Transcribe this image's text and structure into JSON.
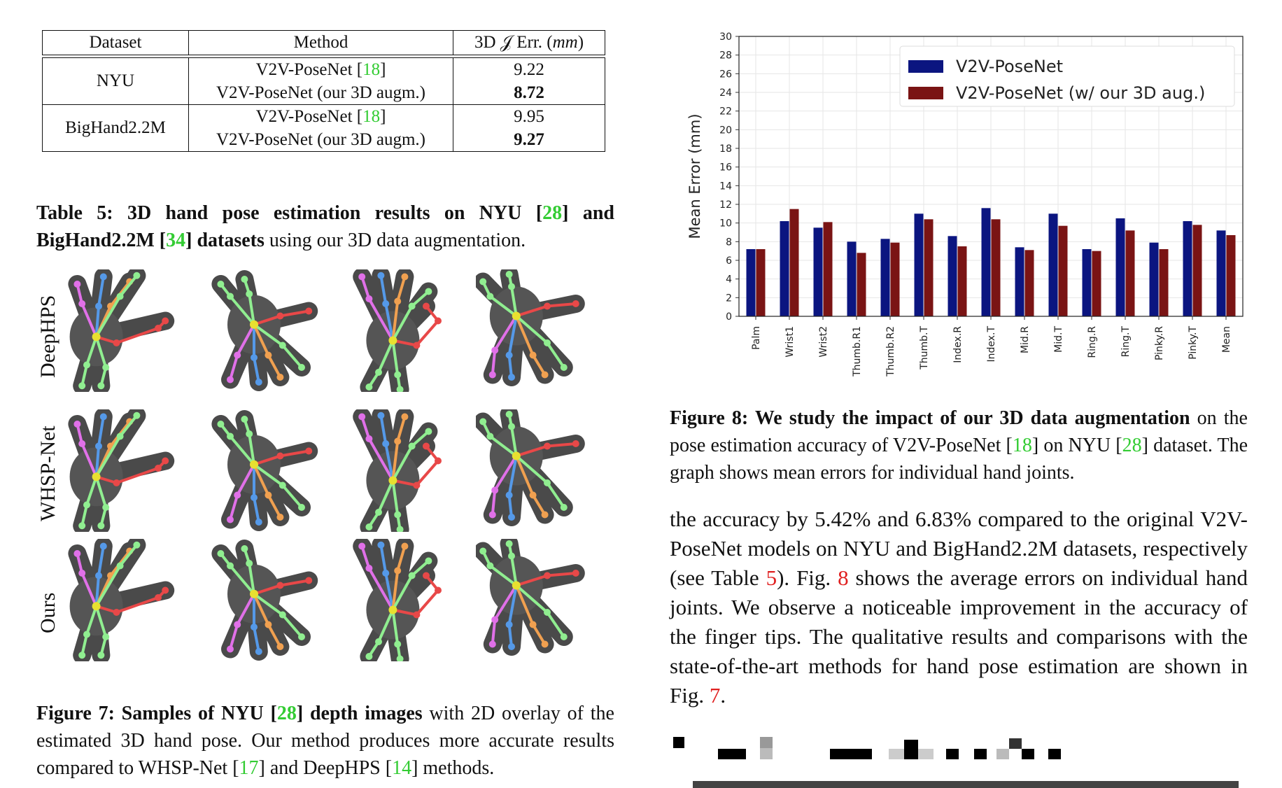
{
  "table5": {
    "headers": [
      "Dataset",
      "Method",
      "3D 𝒥 Err. (mm)"
    ],
    "header_err_prefix": "3D 𝒥 Err. (",
    "header_err_unit": "mm",
    "header_err_suffix": ")",
    "groups": [
      {
        "dataset": "NYU",
        "rows": [
          {
            "method_text": "V2V-PoseNet [",
            "cite": "18",
            "method_tail": "]",
            "err": "9.22",
            "bold": false
          },
          {
            "method_text": "V2V-PoseNet (our 3D augm.)",
            "cite": "",
            "method_tail": "",
            "err": "8.72",
            "bold": true
          }
        ]
      },
      {
        "dataset": "BigHand2.2M",
        "rows": [
          {
            "method_text": "V2V-PoseNet [",
            "cite": "18",
            "method_tail": "]",
            "err": "9.95",
            "bold": false
          },
          {
            "method_text": "V2V-PoseNet (our 3D augm.)",
            "cite": "",
            "method_tail": "",
            "err": "9.27",
            "bold": true
          }
        ]
      }
    ],
    "caption": {
      "bold_1": "Table 5: 3D hand pose estimation results on NYU [",
      "cite_1": "28",
      "bold_2": "] and BigHand2.2M [",
      "cite_2": "34",
      "bold_3": "] datasets",
      "rest": " using our 3D data augmentation."
    }
  },
  "fig7": {
    "row_labels": [
      "DeepHPS",
      "WHSP-Net",
      "Ours"
    ],
    "caption": {
      "bold_1": "Figure 7: Samples of NYU [",
      "cite_1": "28",
      "bold_2": "] depth images",
      "text_1": " with 2D overlay of the estimated 3D hand pose. Our method produces more accurate results compared to WHSP-Net [",
      "cite_2": "17",
      "text_2": "] and DeepHPS [",
      "cite_3": "14",
      "text_3": "] methods."
    }
  },
  "chart_data": {
    "type": "bar",
    "title": "",
    "xlabel": "",
    "ylabel": "Mean Error (mm)",
    "ylim": [
      0,
      30
    ],
    "yticks": [
      0,
      2,
      4,
      6,
      8,
      10,
      12,
      14,
      16,
      18,
      20,
      22,
      24,
      26,
      28,
      30
    ],
    "grid": true,
    "legend_position": "top-right",
    "categories": [
      "Palm",
      "Wrist1",
      "Wrist2",
      "Thumb.R1",
      "Thumb.R2",
      "Thumb.T",
      "Index.R",
      "Index.T",
      "Mid.R",
      "Mid.T",
      "Ring.R",
      "Ring.T",
      "Pinky.R",
      "Pinky.T",
      "Mean"
    ],
    "series": [
      {
        "name": "V2V-PoseNet",
        "color": "#0b1580",
        "values": [
          7.2,
          10.2,
          9.5,
          8.0,
          8.3,
          11.0,
          8.6,
          11.6,
          7.4,
          11.0,
          7.2,
          10.5,
          7.9,
          10.2,
          9.2
        ]
      },
      {
        "name": "V2V-PoseNet (w/ our 3D aug.)",
        "color": "#7a1414",
        "values": [
          7.2,
          11.5,
          10.1,
          6.8,
          7.9,
          10.4,
          7.5,
          10.4,
          7.1,
          9.7,
          7.0,
          9.2,
          7.2,
          9.8,
          8.7
        ]
      }
    ]
  },
  "fig8": {
    "caption": {
      "bold_1": "Figure 8: We study the impact of our 3D data augmentation",
      "text_1": " on the pose estimation accuracy of V2V-PoseNet [",
      "cite_1": "18",
      "text_2": "] on NYU [",
      "cite_2": "28",
      "text_3": "] dataset. The graph shows mean errors for individual hand joints."
    }
  },
  "body": {
    "text_1": "the accuracy by 5.42% and 6.83% compared to the original V2V-PoseNet models on NYU and BigHand2.2M datasets, respectively (see Table ",
    "ref_table": "5",
    "text_2": "). Fig. ",
    "ref_fig8": "8",
    "text_3": " shows the average errors on individual hand joints. We observe a noticeable improvement in the accuracy of the finger tips. The qualitative results and comparisons with the state-of-the-art methods for hand pose estimation are shown in Fig. ",
    "ref_fig7": "7",
    "text_4": "."
  },
  "colors": {
    "citation": "#33cc33",
    "reference": "#e02020",
    "joint_pink": "#e070e8",
    "joint_blue": "#5599e8",
    "joint_orange": "#f0a050",
    "joint_green": "#90ee90",
    "joint_red": "#e84848",
    "joint_palm": "#e8e030"
  }
}
